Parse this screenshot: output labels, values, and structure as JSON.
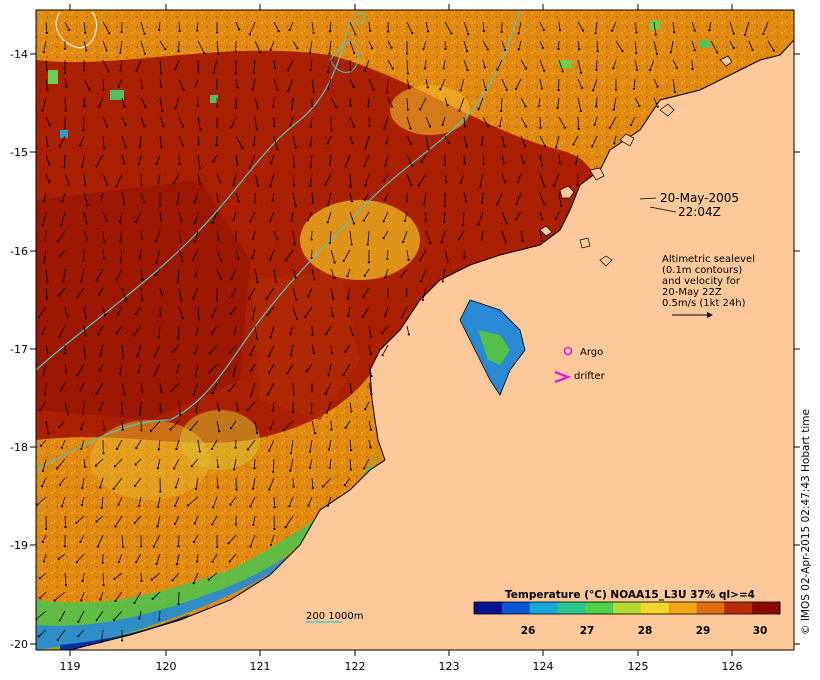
{
  "map": {
    "lon_ticks": [
      "119",
      "120",
      "121",
      "122",
      "123",
      "124",
      "125",
      "126"
    ],
    "lat_ticks": [
      "-14",
      "-15",
      "-16",
      "-17",
      "-18",
      "-19",
      "-20"
    ],
    "lon_range": [
      118.6,
      126.7
    ],
    "lat_range": [
      -20.1,
      -13.6
    ],
    "land_color": "#fdc89a",
    "warm_color": "#a81a00",
    "sst_color": "#e08a12"
  },
  "annotations": {
    "date": "20-May-2005",
    "time": "22:04Z",
    "alt_line1": "Altimetric sealevel",
    "alt_line2": "(0.1m contours)",
    "alt_line3": "and velocity for",
    "alt_line4": "20-May 22Z",
    "alt_line5": "0.5m/s (1kt 24h)",
    "argo": "Argo",
    "drifter": "drifter",
    "isobath": "200  1000m"
  },
  "colorbar": {
    "title": "Temperature (°C) NOAA15_L3U 37% ql>=4",
    "ticks": [
      "26",
      "27",
      "28",
      "29",
      "30"
    ],
    "colors": [
      "#08108c",
      "#0a56d6",
      "#16a6d8",
      "#28c48e",
      "#52d24c",
      "#b2dc2e",
      "#f0d628",
      "#f2a618",
      "#de6e12",
      "#b82a06",
      "#8a0a00"
    ]
  },
  "credit": "© IMOS 02-Apr-2015 02:47:43 Hobart time"
}
